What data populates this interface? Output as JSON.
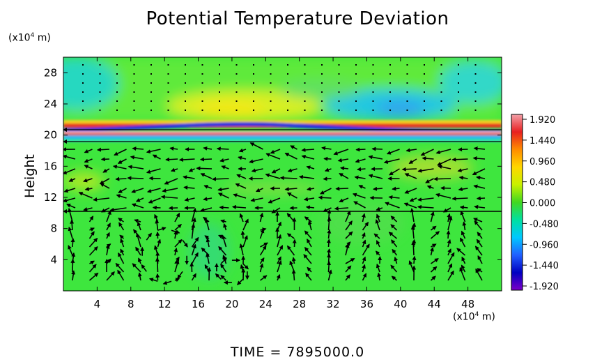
{
  "title": "Potential Temperature Deviation",
  "time_label": "TIME = 7895000.0",
  "y_unit": {
    "prefix": "(x10",
    "exp": "4",
    "suffix": " m)"
  },
  "x_unit": {
    "prefix": "(x10",
    "exp": "4",
    "suffix": " m)"
  },
  "chart_data": {
    "type": "heatmap",
    "title": "Potential Temperature Deviation",
    "ylabel": "Height",
    "xlabel": "",
    "x_unit_text": "(x10^4 m)",
    "y_unit_text": "(x10^4 m)",
    "xlim": [
      0,
      52
    ],
    "ylim": [
      0,
      30
    ],
    "x_ticks": [
      4,
      8,
      12,
      16,
      20,
      24,
      28,
      32,
      36,
      40,
      44,
      48
    ],
    "y_ticks": [
      4,
      8,
      12,
      16,
      20,
      24,
      28
    ],
    "colorbar": {
      "ticks": [
        "1.920",
        "1.440",
        "0.960",
        "0.480",
        "0.000",
        "-0.480",
        "-0.960",
        "-1.440",
        "-1.920"
      ],
      "range": [
        -1.92,
        1.92
      ],
      "colors_top_to_bottom": [
        "#f2a0a8",
        "#e82020",
        "#ff8c00",
        "#ffd700",
        "#c8f000",
        "#40d820",
        "#00e0a0",
        "#00c8ff",
        "#2060ff",
        "#0000c0",
        "#7a00c8"
      ]
    },
    "field_description": {
      "background_value": 0.1,
      "warm_band_top_height": 22,
      "cold_band_height": 21,
      "warm_band_bottom_height": 20.2,
      "upper_warm_blob": {
        "x": 22,
        "y": 24.5,
        "value": 0.6
      },
      "upper_cool_regions": [
        {
          "x": 4,
          "y": 26,
          "value": -0.4
        },
        {
          "x": 40,
          "y": 24,
          "value": -0.7
        },
        {
          "x": 50,
          "y": 26,
          "value": -0.4
        }
      ]
    },
    "vectors": "velocity field shown as arrows; strong westward flow near height 19 and 10, circulation cells below height 10"
  }
}
